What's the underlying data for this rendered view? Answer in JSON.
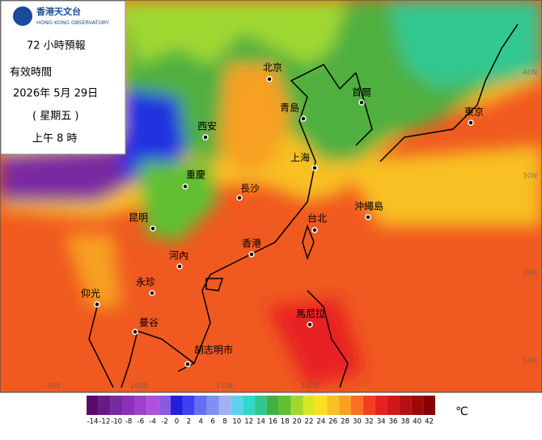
{
  "header": {
    "org_zh": "香港天文台",
    "org_en": "HONG KONG OBSERVATORY",
    "title": "72 小時預報",
    "valid_label": "有效時間",
    "date": "2026年  5月  29日",
    "weekday": "( 星期五 )",
    "time": "上午  8 時"
  },
  "cities": [
    "北京",
    "青島",
    "首爾",
    "東京",
    "西安",
    "上海",
    "重慶",
    "長沙",
    "沖繩島",
    "台北",
    "昆明",
    "香港",
    "河內",
    "永珍",
    "仰光",
    "曼谷",
    "馬尼拉",
    "胡志明市"
  ],
  "lat_labels": [
    "40N",
    "30N",
    "20N",
    "10N"
  ],
  "lon_labels": [
    "90E",
    "100E",
    "110E",
    "120E"
  ],
  "colorbar": {
    "ticks": [
      -14,
      -12,
      -10,
      -8,
      -6,
      -4,
      -2,
      0,
      2,
      4,
      6,
      8,
      10,
      12,
      14,
      16,
      18,
      20,
      22,
      24,
      26,
      28,
      30,
      32,
      34,
      36,
      38,
      40,
      42
    ],
    "colors": [
      "#5a0a6e",
      "#6a1a86",
      "#7a2aa0",
      "#8c30b8",
      "#a040cc",
      "#b050dd",
      "#8a5ae6",
      "#2020e0",
      "#4040f0",
      "#6070f0",
      "#8090f0",
      "#a0b0f0",
      "#60d0f0",
      "#30d8c8",
      "#30c890",
      "#40b040",
      "#60c030",
      "#a0d830",
      "#d8e820",
      "#f8e020",
      "#f8c020",
      "#f8a020",
      "#f87020",
      "#f04020",
      "#e82020",
      "#d01818",
      "#b81010",
      "#a00808",
      "#880000"
    ],
    "unit": "℃"
  }
}
